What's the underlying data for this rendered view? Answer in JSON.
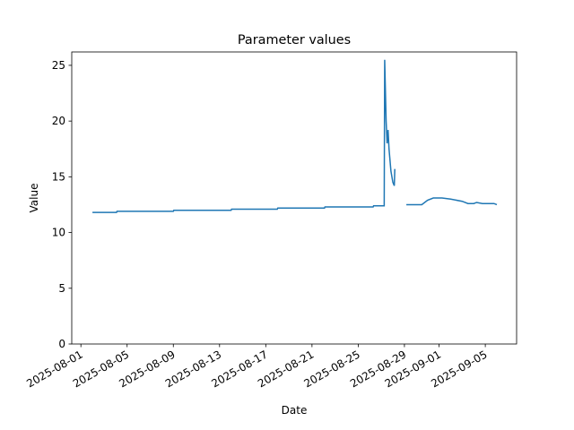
{
  "chart_data": {
    "type": "line",
    "title": "Parameter values",
    "x_label": "Date",
    "y_label": "Value",
    "x": [
      "2025-08-02T00:00",
      "2025-08-04T02:00",
      "2025-08-04T03:00",
      "2025-08-09T00:00",
      "2025-08-09T01:00",
      "2025-08-14T00:00",
      "2025-08-14T01:00",
      "2025-08-18T00:00",
      "2025-08-18T01:00",
      "2025-08-22T02:00",
      "2025-08-22T03:00",
      "2025-08-26T07:00",
      "2025-08-26T08:00",
      "2025-08-27T06:00",
      "2025-08-27T07:00",
      "2025-08-27T10:00",
      "2025-08-27T12:00",
      "2025-08-27T14:00",
      "2025-08-27T16:00",
      "2025-08-27T20:00",
      "2025-08-28T00:00",
      "2025-08-28T03:00",
      "2025-08-28T04:00",
      "2025-08-28T12:00",
      "2025-08-29T04:00",
      "2025-08-30T12:00",
      "2025-08-31T00:00",
      "2025-08-31T12:00",
      "2025-09-01T06:00",
      "2025-09-02T00:00",
      "2025-09-03T00:00",
      "2025-09-03T12:00",
      "2025-09-04T00:00",
      "2025-09-04T06:00",
      "2025-09-04T18:00",
      "2025-09-05T18:00",
      "2025-09-06T00:00"
    ],
    "series": [
      {
        "name": "Value",
        "color": "#1f77b4",
        "values": [
          11.8,
          11.8,
          11.9,
          11.9,
          12.0,
          12.0,
          12.1,
          12.1,
          12.2,
          12.2,
          12.3,
          12.3,
          12.4,
          12.4,
          25.5,
          20.0,
          18.0,
          19.2,
          17.5,
          15.5,
          14.5,
          14.2,
          15.7,
          null,
          12.5,
          12.5,
          12.9,
          13.1,
          13.1,
          13.0,
          12.8,
          12.6,
          12.6,
          12.7,
          12.6,
          12.6,
          12.5
        ]
      }
    ],
    "xlim": [
      "2025-07-31T05:00",
      "2025-09-07T17:00"
    ],
    "xticks": [
      "2025-08-01",
      "2025-08-05",
      "2025-08-09",
      "2025-08-13",
      "2025-08-17",
      "2025-08-21",
      "2025-08-25",
      "2025-08-29",
      "2025-09-01",
      "2025-09-05"
    ],
    "ylim": [
      0,
      26.2
    ],
    "yticks": [
      0,
      5,
      10,
      15,
      20,
      25
    ],
    "grid": false
  }
}
